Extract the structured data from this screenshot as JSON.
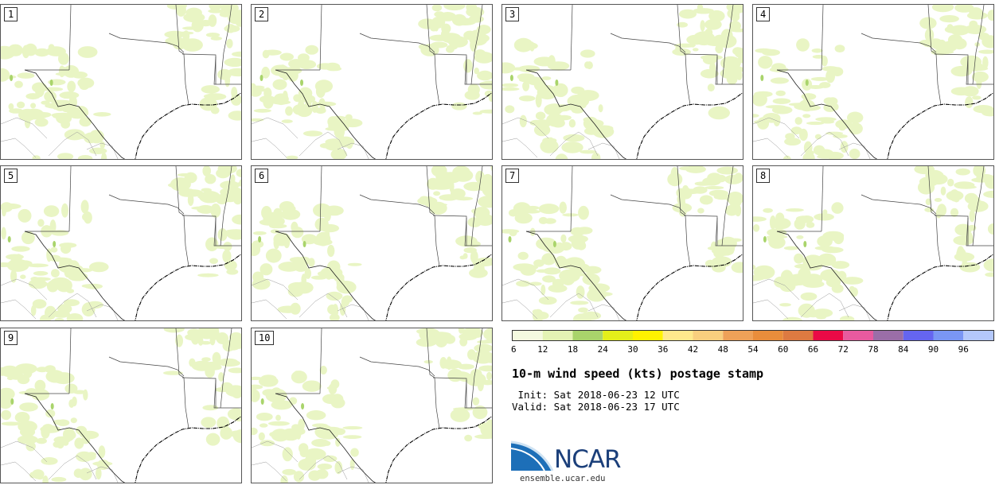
{
  "panels": [
    {
      "label": "1"
    },
    {
      "label": "2"
    },
    {
      "label": "3"
    },
    {
      "label": "4"
    },
    {
      "label": "5"
    },
    {
      "label": "6"
    },
    {
      "label": "7"
    },
    {
      "label": "8"
    },
    {
      "label": "9"
    },
    {
      "label": "10"
    }
  ],
  "colorbar": {
    "ticks": [
      "6",
      "12",
      "18",
      "24",
      "30",
      "36",
      "42",
      "48",
      "54",
      "60",
      "66",
      "72",
      "78",
      "84",
      "90",
      "96"
    ],
    "colors": [
      "#f5fae0",
      "#e4f3b4",
      "#a9d46b",
      "#e4ef1a",
      "#fff200",
      "#fee98c",
      "#f8cf7e",
      "#eea158",
      "#e98d3b",
      "#dd7a41",
      "#ea0a46",
      "#e85a9f",
      "#9b6ea8",
      "#6565f0",
      "#7a96f4",
      "#b4c8fb"
    ]
  },
  "title": "10-m wind speed (kts) postage stamp",
  "init": " Init: Sat 2018-06-23 12 UTC",
  "valid": "Valid: Sat 2018-06-23 17 UTC",
  "logo": {
    "text": "NCAR",
    "site": "ensemble.ucar.edu"
  }
}
